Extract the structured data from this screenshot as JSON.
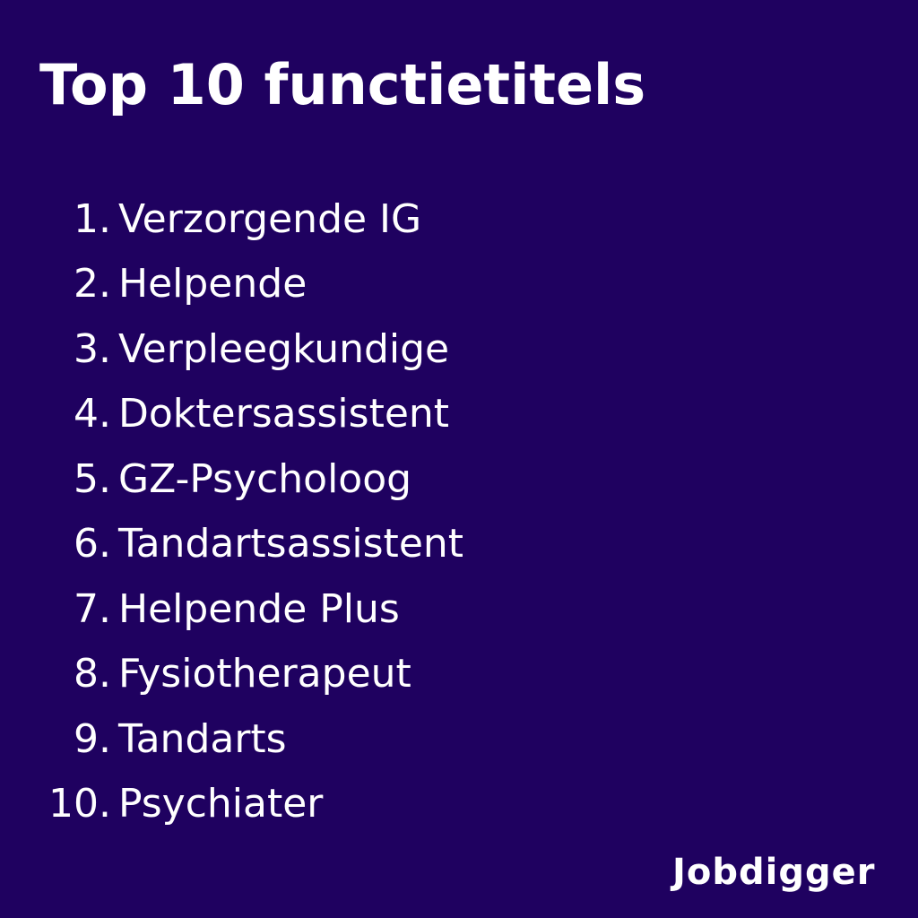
{
  "title": "Top 10 functietitels",
  "items": [
    {
      "number": "1.",
      "label": "Verzorgende IG"
    },
    {
      "number": "2.",
      "label": "Helpende"
    },
    {
      "number": "3.",
      "label": "Verpleegkundige"
    },
    {
      "number": "4.",
      "label": "Doktersassistent"
    },
    {
      "number": "5.",
      "label": "GZ-Psycholoog"
    },
    {
      "number": "6.",
      "label": "Tandartsassistent"
    },
    {
      "number": "7.",
      "label": "Helpende Plus"
    },
    {
      "number": "8.",
      "label": "Fysiotherapeut"
    },
    {
      "number": "9.",
      "label": "Tandarts"
    },
    {
      "number": "10.",
      "label": "Psychiater"
    }
  ],
  "logo": "Jobdigger",
  "colors": {
    "background": "#1f0160",
    "text": "#ffffff"
  }
}
